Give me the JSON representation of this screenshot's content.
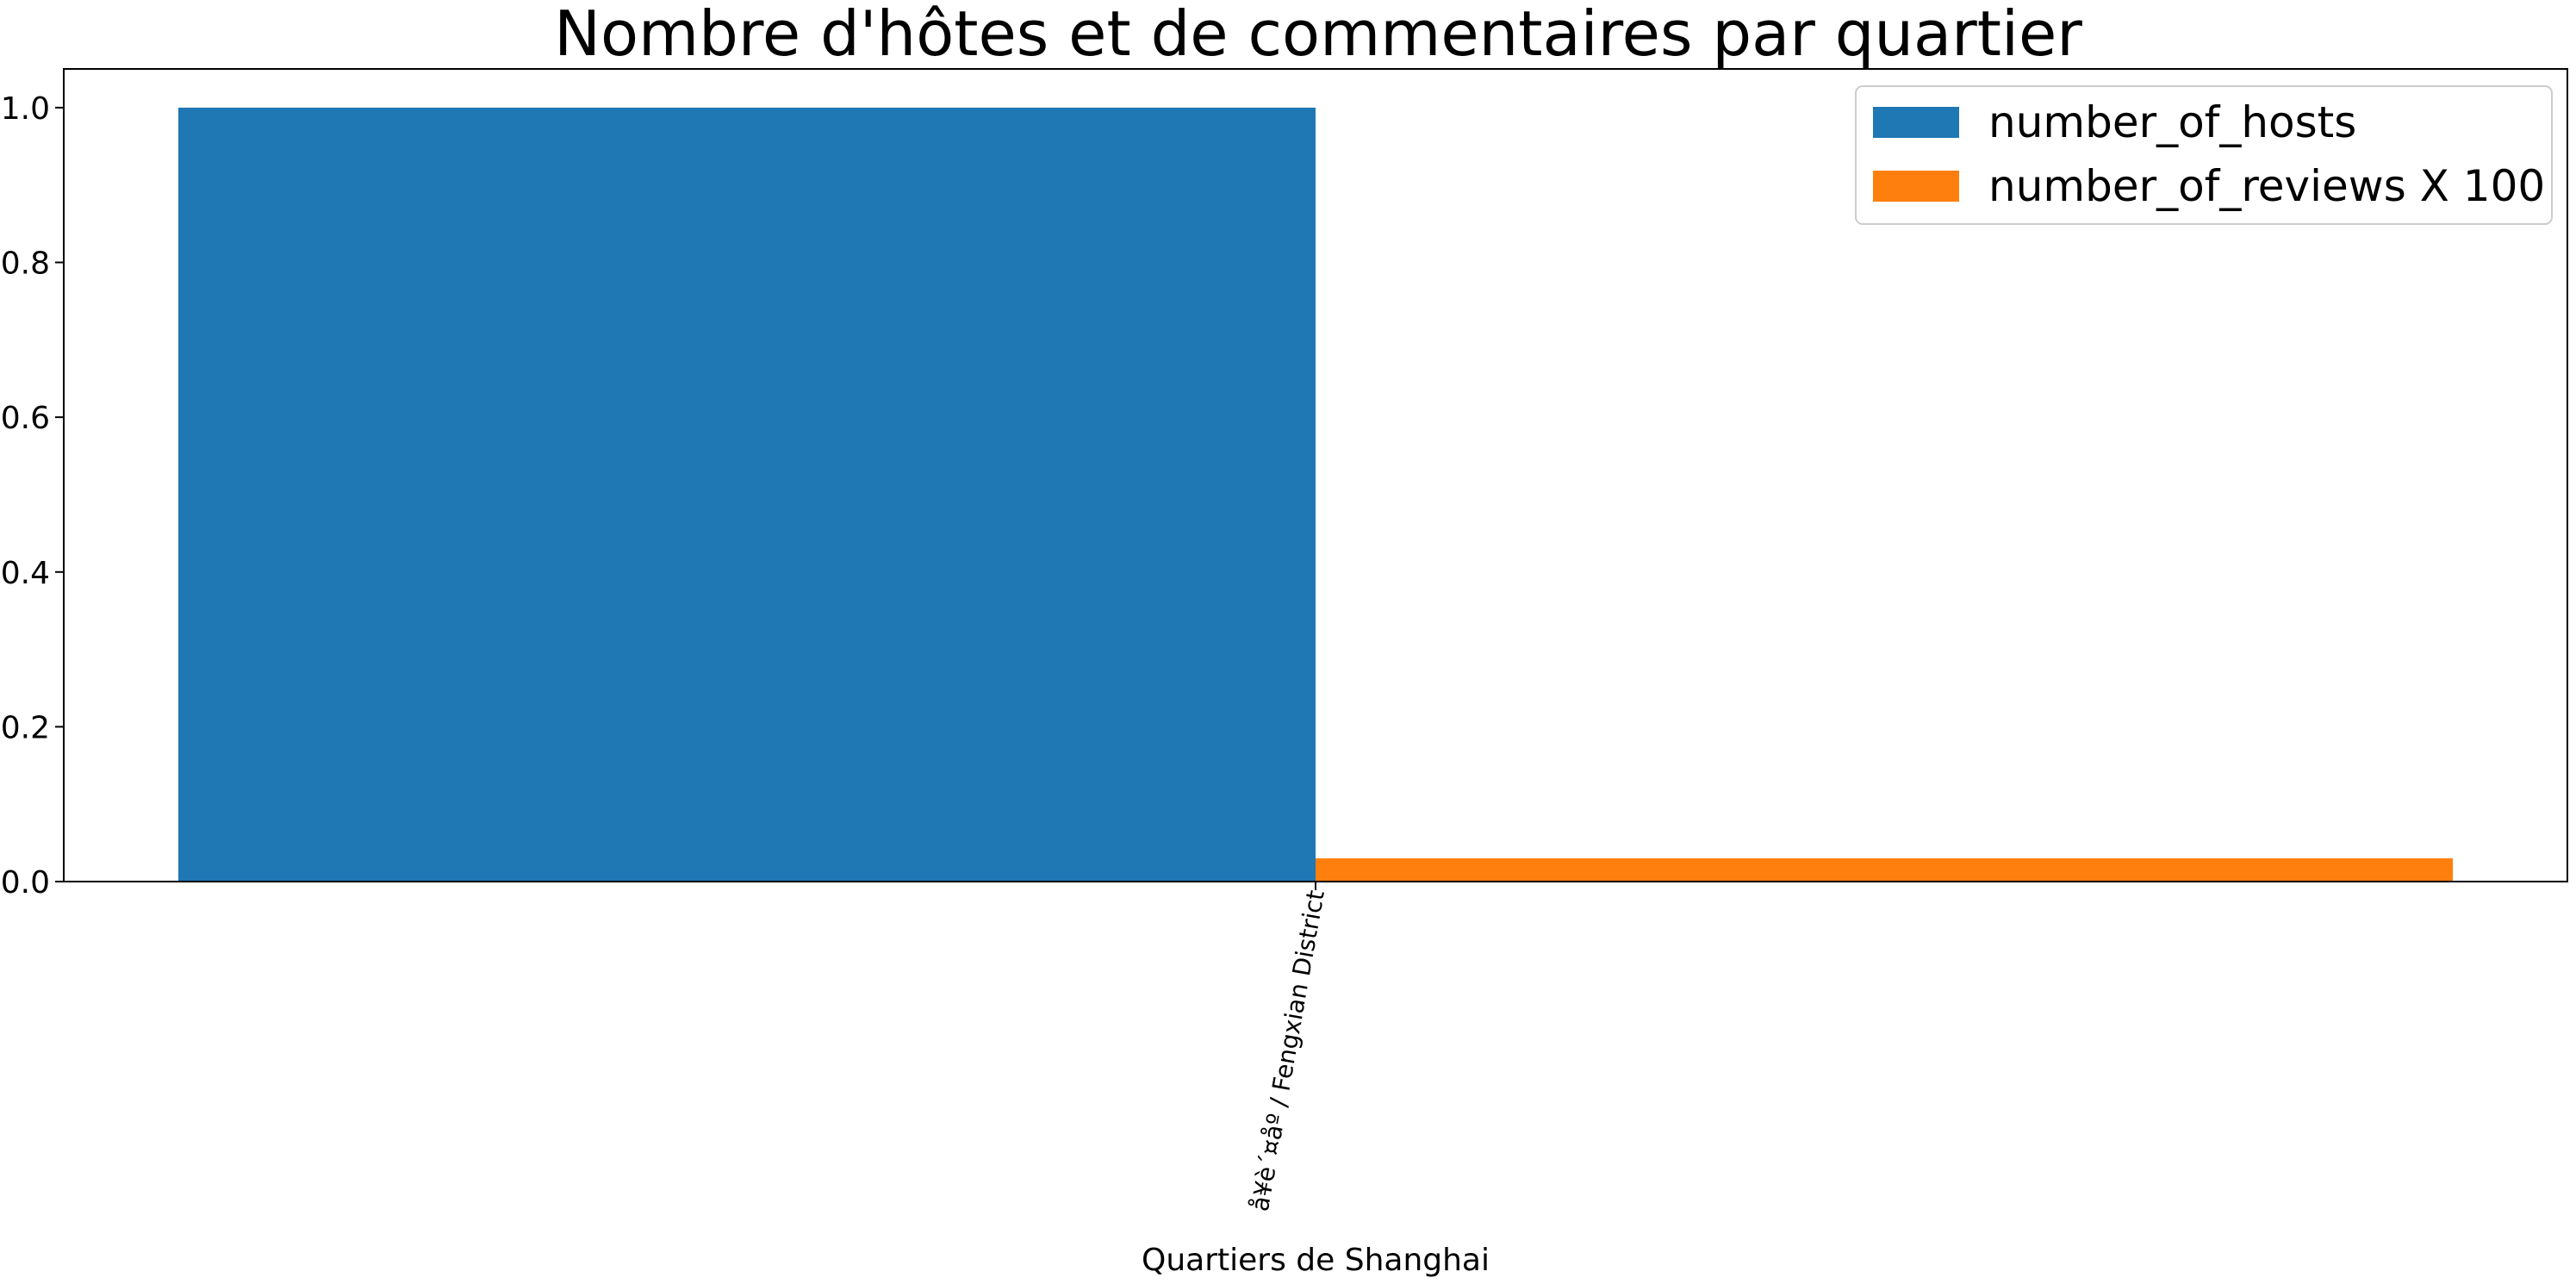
{
  "chart_data": {
    "type": "bar",
    "title": "Nombre d'hôtes et de commentaires par quartier",
    "xlabel": "Quartiers de Shanghai",
    "ylabel": "",
    "categories": [
      "å¥è´¤åº / Fengxian District"
    ],
    "series": [
      {
        "name": "number_of_hosts",
        "values": [
          1.0
        ],
        "color": "#1f77b4"
      },
      {
        "name": "number_of_reviews X 100",
        "values": [
          0.03
        ],
        "color": "#ff7f0e"
      }
    ],
    "ylim": [
      0,
      1.05
    ],
    "yticks": [
      0.0,
      0.2,
      0.4,
      0.6,
      0.8,
      1.0
    ],
    "ytick_labels": [
      "0.0",
      "0.2",
      "0.4",
      "0.6",
      "0.8",
      "1.0"
    ],
    "grid": false,
    "legend_position": "top-right"
  }
}
